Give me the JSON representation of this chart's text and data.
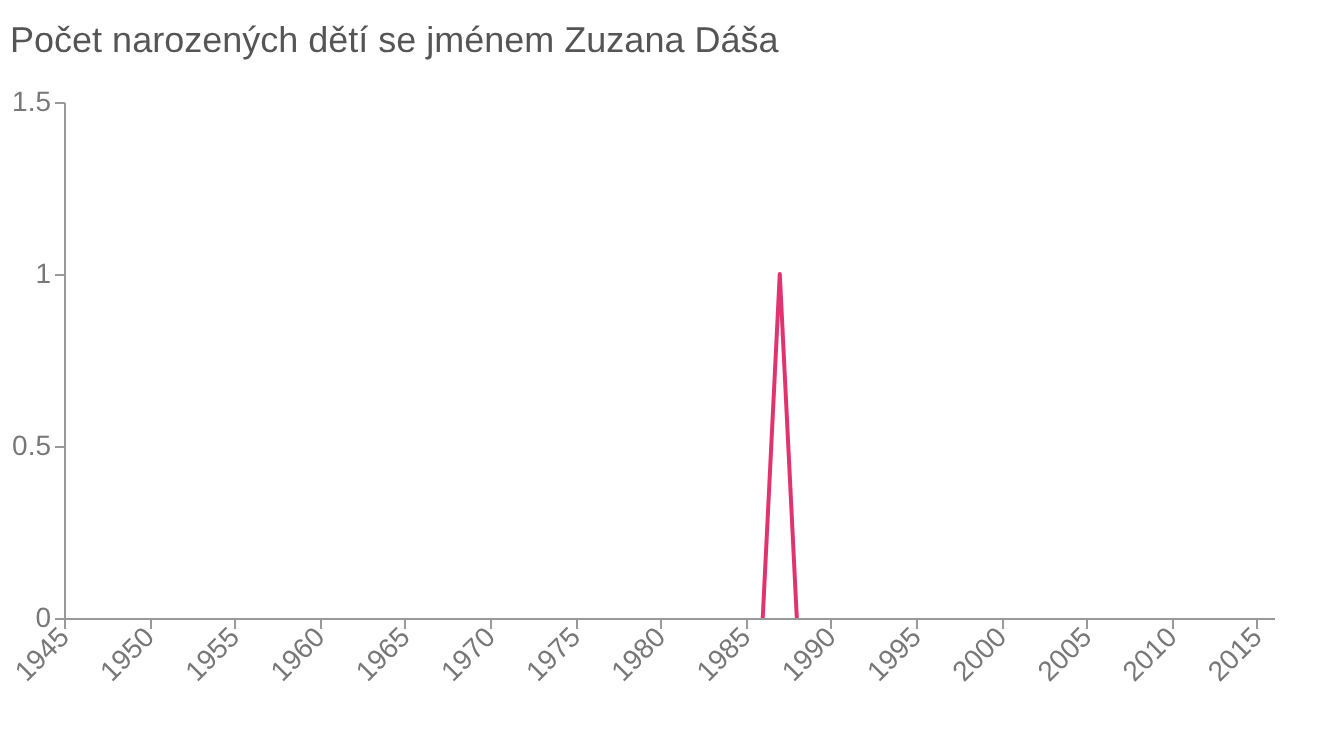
{
  "chart_data": {
    "type": "line",
    "title": "Počet narozených dětí se jménem Zuzana Dáša",
    "x": [
      1986,
      1987,
      1988
    ],
    "series": [
      {
        "color": "#e0336f",
        "values": [
          0,
          1,
          0
        ]
      }
    ],
    "xlim": [
      1945,
      2016
    ],
    "xticks": [
      1945,
      1950,
      1955,
      1960,
      1965,
      1970,
      1975,
      1980,
      1985,
      1990,
      1995,
      2000,
      2005,
      2010,
      2015
    ],
    "ylim": [
      0,
      1.5
    ],
    "yticks": [
      0,
      0.5,
      1,
      1.5
    ],
    "grid": false,
    "marker": "none",
    "line_style": "solid"
  }
}
